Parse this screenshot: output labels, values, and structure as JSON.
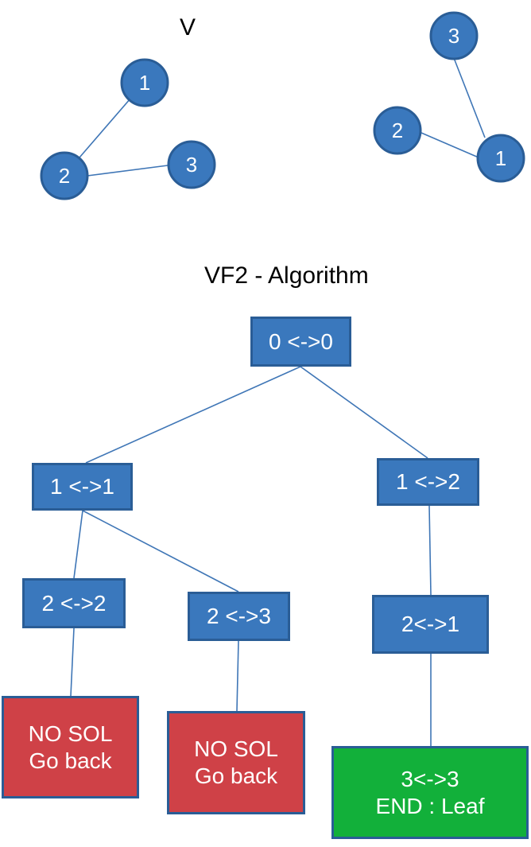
{
  "graph_a": {
    "title": "V",
    "nodes": [
      "1",
      "2",
      "3"
    ]
  },
  "graph_b": {
    "nodes": [
      "3",
      "2",
      "1"
    ]
  },
  "tree": {
    "title": "VF2 - Algorithm",
    "root": "0 <->0",
    "left_level1": "1 <->1",
    "right_level1": "1 <->2",
    "left_left": "2 <->2",
    "left_right": "2 <->3",
    "right_level2": "2<->1",
    "leaf_left": {
      "line1": "NO SOL",
      "line2": "Go back"
    },
    "leaf_middle": {
      "line1": "NO SOL",
      "line2": "Go back"
    },
    "leaf_right": {
      "line1": "3<->3",
      "line2": "END : Leaf"
    }
  },
  "colors": {
    "node_fill": "#3a78bd",
    "edge": "#3f76b6",
    "fail_box": "#cf4147",
    "success_box": "#12b03a"
  }
}
